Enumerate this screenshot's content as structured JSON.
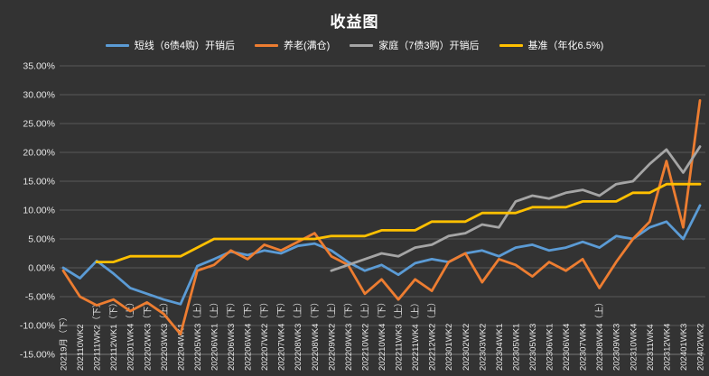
{
  "colors": {
    "background": "#333333",
    "grid": "#5a5a5a",
    "axis_line": "#7a7a7a",
    "text": "#ffffff",
    "axis_text": "#e6e6e6"
  },
  "chart_data": {
    "type": "line",
    "title": "收益图",
    "xlabel": "",
    "ylabel": "",
    "ylim": [
      -15,
      35
    ],
    "ytick_step": 5,
    "ytick_labels": [
      "35.00%",
      "30.00%",
      "25.00%",
      "20.00%",
      "15.00%",
      "10.00%",
      "5.00%",
      "0.00%",
      "-5.00%",
      "-10.00%",
      "-15.00%"
    ],
    "grid": true,
    "legend_position": "top",
    "x_label_rotation": 90,
    "categories": [
      "20219月（下）",
      "202110WK2",
      "202111WK2（下）",
      "202112WK1（下）",
      "202201WK4（上）",
      "202202WK3（下）",
      "202203WK3（上）",
      "202204WK1",
      "202205WK3（上）",
      "202206WK1（上）",
      "202206WK3（下）",
      "202206WK4（下）",
      "202207WK2（下）",
      "202207WK4（下）",
      "202208WK3（上）",
      "202208WK4（下）",
      "202209WK2（上）",
      "202209WK3（下）",
      "202210WK2（上）",
      "202210WK4（下）",
      "202211WK3（上）",
      "202211WK4（上）",
      "202212WK2（上）",
      "202301WK2",
      "202302WK2",
      "202303WK2",
      "202304WK1",
      "202305WK1",
      "202305WK3",
      "202306WK1",
      "202306WK4",
      "202307WK4",
      "202308WK4（上）",
      "202309WK3",
      "202310WK4",
      "202311WK4",
      "202312WK4",
      "202401WK3",
      "202402WK2"
    ],
    "series": [
      {
        "name": "短线（6债4购）开销后",
        "color": "#5B9BD5",
        "values": [
          0.0,
          -1.8,
          1.2,
          -1.0,
          -3.5,
          -4.5,
          -5.5,
          -6.3,
          0.3,
          1.5,
          2.8,
          2.2,
          3.0,
          2.5,
          3.8,
          4.2,
          3.0,
          1.0,
          -0.5,
          0.5,
          -1.2,
          0.8,
          1.5,
          1.0,
          2.5,
          3.0,
          2.0,
          3.5,
          4.0,
          3.0,
          3.5,
          4.5,
          3.5,
          5.5,
          5.0,
          7.0,
          8.0,
          5.0,
          10.8
        ]
      },
      {
        "name": "养老(满仓)",
        "color": "#ED7D31",
        "values": [
          -0.5,
          -5.0,
          -6.5,
          -5.5,
          -7.5,
          -6.0,
          -8.0,
          -11.5,
          -0.5,
          0.5,
          3.0,
          1.5,
          4.0,
          3.0,
          4.5,
          6.0,
          2.0,
          0.5,
          -4.5,
          -2.0,
          -5.5,
          -2.0,
          -4.0,
          1.0,
          2.5,
          -2.5,
          1.5,
          0.5,
          -1.5,
          1.0,
          -0.5,
          1.5,
          -3.5,
          1.0,
          5.0,
          8.0,
          18.5,
          7.0,
          29.0
        ]
      },
      {
        "name": "家庭（7债3购）开销后",
        "color": "#A5A5A5",
        "values": [
          null,
          null,
          null,
          null,
          null,
          null,
          null,
          null,
          null,
          null,
          null,
          null,
          null,
          null,
          null,
          null,
          -0.5,
          0.5,
          1.5,
          2.5,
          2.0,
          3.5,
          4.0,
          5.5,
          6.0,
          7.5,
          7.0,
          11.5,
          12.5,
          12.0,
          13.0,
          13.5,
          12.5,
          14.5,
          15.0,
          18.0,
          20.5,
          16.5,
          21.0
        ]
      },
      {
        "name": "基准（年化6.5%)",
        "color": "#FFC000",
        "values": [
          null,
          null,
          1.0,
          1.0,
          2.0,
          2.0,
          2.0,
          2.0,
          3.5,
          5.0,
          5.0,
          5.0,
          5.0,
          5.0,
          5.0,
          5.0,
          5.5,
          5.5,
          5.5,
          6.5,
          6.5,
          6.5,
          8.0,
          8.0,
          8.0,
          9.5,
          9.5,
          9.5,
          10.5,
          10.5,
          10.5,
          11.5,
          11.5,
          11.5,
          13.0,
          13.0,
          14.5,
          14.5,
          14.5
        ]
      }
    ]
  }
}
